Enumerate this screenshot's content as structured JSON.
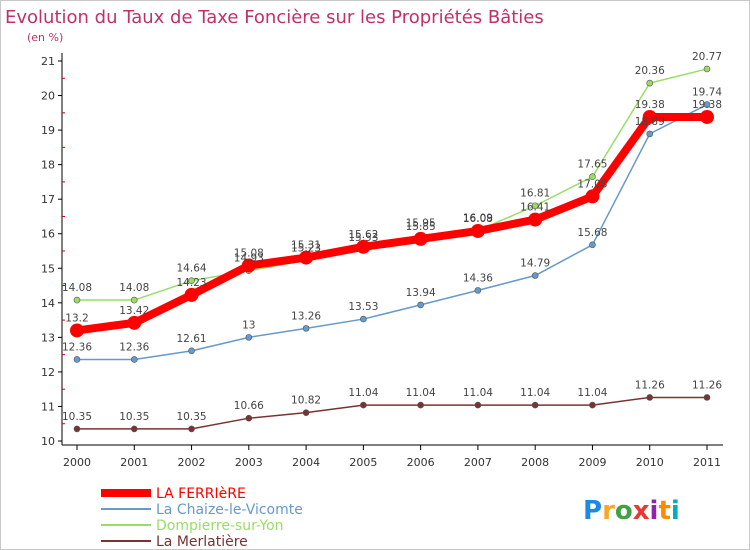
{
  "chart_data": {
    "type": "line",
    "title": "Evolution du Taux de Taxe Foncière sur les Propriétés Bâties",
    "subtitle": "(en %)",
    "xlabel": "",
    "ylabel": "",
    "x": [
      "2000",
      "2001",
      "2002",
      "2003",
      "2004",
      "2005",
      "2006",
      "2007",
      "2008",
      "2009",
      "2010",
      "2011"
    ],
    "ylim": [
      10,
      21
    ],
    "yticks": [
      10,
      11,
      12,
      13,
      14,
      15,
      16,
      17,
      18,
      19,
      20,
      21
    ],
    "grid": false,
    "legend_position": "bottom-left",
    "series": [
      {
        "name": "LA FERRIèRE",
        "color": "#ff0000",
        "values": [
          13.2,
          13.42,
          14.23,
          15.08,
          15.31,
          15.62,
          15.85,
          16.08,
          16.41,
          17.08,
          19.38,
          19.38
        ],
        "labels": [
          "13.2",
          "13.42",
          "14.23",
          "15.08",
          "15.31",
          "15.62",
          "15.85",
          "16.08",
          "16.41",
          "17.08",
          "19.38",
          "19.38"
        ]
      },
      {
        "name": "La Chaize-le-Vicomte",
        "color": "#6699cc",
        "values": [
          12.36,
          12.36,
          12.61,
          13.0,
          13.26,
          13.53,
          13.94,
          14.36,
          14.79,
          15.68,
          18.89,
          19.74
        ],
        "labels": [
          "12.36",
          "12.36",
          "12.61",
          "13",
          "13.26",
          "13.53",
          "13.94",
          "14.36",
          "14.79",
          "15.68",
          "18.89",
          "19.74"
        ]
      },
      {
        "name": "Dompierre-sur-Yon",
        "color": "#99dd66",
        "values": [
          14.08,
          14.08,
          14.64,
          14.93,
          15.23,
          15.53,
          15.95,
          16.09,
          16.81,
          17.65,
          20.36,
          20.77
        ],
        "labels": [
          "14.08",
          "14.08",
          "14.64",
          "14.93",
          "15.23",
          "15.53",
          "15.95",
          "16.09",
          "16.81",
          "17.65",
          "20.36",
          "20.77"
        ]
      },
      {
        "name": "La Merlatière",
        "color": "#7a3333",
        "values": [
          10.35,
          10.35,
          10.35,
          10.66,
          10.82,
          11.04,
          11.04,
          11.04,
          11.04,
          11.04,
          11.26,
          11.26
        ],
        "labels": [
          "10.35",
          "10.35",
          "10.35",
          "10.66",
          "10.82",
          "11.04",
          "11.04",
          "11.04",
          "11.04",
          "11.04",
          "11.26",
          "11.26"
        ]
      }
    ]
  },
  "branding": {
    "logo_text": "Proxiti",
    "logo_letter_colors": [
      "#1e88e5",
      "#f9a825",
      "#43a047",
      "#e53935",
      "#8e24aa",
      "#fb8c00",
      "#00acc1"
    ]
  }
}
